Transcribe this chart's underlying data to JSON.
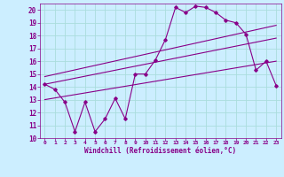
{
  "xlabel": "Windchill (Refroidissement éolien,°C)",
  "background_color": "#cceeff",
  "line_color": "#880088",
  "grid_color": "#aadddd",
  "xlim": [
    -0.5,
    23.5
  ],
  "ylim": [
    10,
    20.5
  ],
  "yticks": [
    10,
    11,
    12,
    13,
    14,
    15,
    16,
    17,
    18,
    19,
    20
  ],
  "xticks": [
    0,
    1,
    2,
    3,
    4,
    5,
    6,
    7,
    8,
    9,
    10,
    11,
    12,
    13,
    14,
    15,
    16,
    17,
    18,
    19,
    20,
    21,
    22,
    23
  ],
  "series1_x": [
    0,
    1,
    2,
    3,
    4,
    5,
    6,
    7,
    8,
    9,
    10,
    11,
    12,
    13,
    14,
    15,
    16,
    17,
    18,
    19,
    20,
    21,
    22,
    23
  ],
  "series1_y": [
    14.2,
    13.8,
    12.8,
    10.5,
    12.8,
    10.5,
    11.5,
    13.1,
    11.5,
    15.0,
    15.0,
    16.1,
    17.7,
    20.2,
    19.8,
    20.3,
    20.2,
    19.8,
    19.2,
    19.0,
    18.1,
    15.3,
    16.0,
    14.1
  ],
  "series2_x": [
    0,
    23
  ],
  "series2_y": [
    14.8,
    18.8
  ],
  "series3_x": [
    0,
    23
  ],
  "series3_y": [
    14.2,
    17.8
  ],
  "series4_x": [
    0,
    23
  ],
  "series4_y": [
    13.0,
    16.0
  ]
}
